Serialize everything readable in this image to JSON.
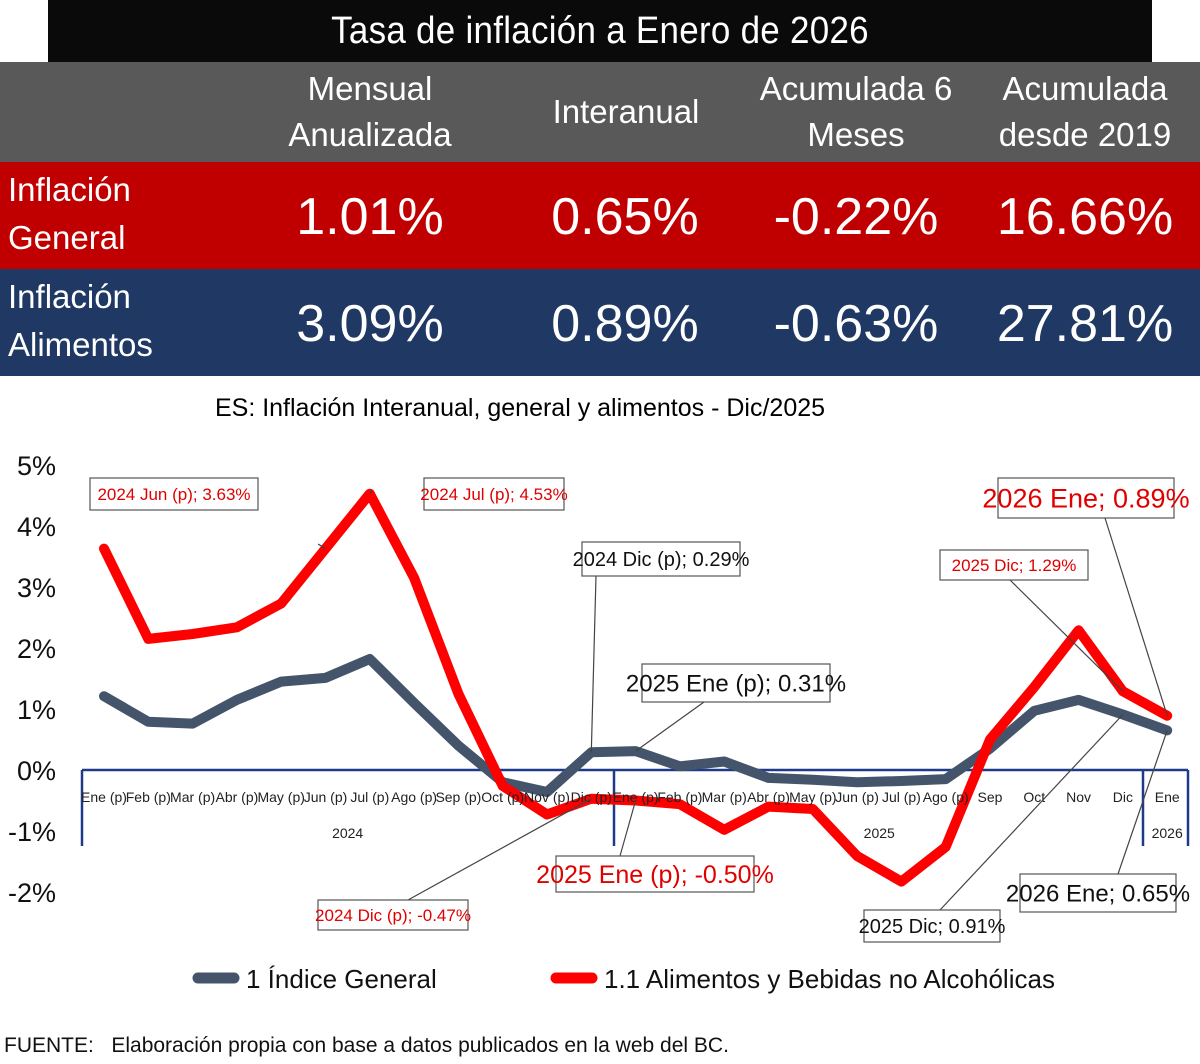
{
  "table": {
    "title": "Tasa de inflación a Enero de 2026",
    "headers": [
      "Mensual Anualizada",
      "Interanual",
      "Acumulada 6 Meses",
      "Acumulada desde 2019"
    ],
    "rows": [
      {
        "label": "Inflación General",
        "values": [
          "1.01%",
          "0.65%",
          "-0.22%",
          "16.66%"
        ]
      },
      {
        "label": "Inflación Alimentos",
        "values": [
          "3.09%",
          "0.89%",
          "-0.63%",
          "27.81%"
        ]
      }
    ]
  },
  "chart_data": {
    "type": "line",
    "title": "ES: Inflación Interanual, general y alimentos - Dic/2025",
    "ylim": [
      -2,
      5
    ],
    "yticks": [
      "-2%",
      "-1%",
      "0%",
      "1%",
      "2%",
      "3%",
      "4%",
      "5%"
    ],
    "categories": [
      "Ene (p)",
      "Feb (p)",
      "Mar (p)",
      "Abr (p)",
      "May (p)",
      "Jun (p)",
      "Jul (p)",
      "Ago (p)",
      "Sep (p)",
      "Oct (p)",
      "Nov (p)",
      "Dic (p)",
      "Ene (p)",
      "Feb (p)",
      "Mar (p)",
      "Abr (p)",
      "May (p)",
      "Jun (p)",
      "Jul (p)",
      "Ago (p)",
      "Sep",
      "Oct",
      "Nov",
      "Dic",
      "Ene"
    ],
    "groups": [
      {
        "label": "2024",
        "start": 0,
        "end": 11
      },
      {
        "label": "2025",
        "start": 12,
        "end": 23
      },
      {
        "label": "2026",
        "start": 24,
        "end": 24
      }
    ],
    "series": [
      {
        "name": "1   Índice General",
        "color": "#44546a",
        "values": [
          1.21,
          0.79,
          0.76,
          1.15,
          1.45,
          1.51,
          1.82,
          1.1,
          0.4,
          -0.2,
          -0.36,
          0.29,
          0.31,
          0.06,
          0.14,
          -0.13,
          -0.16,
          -0.2,
          -0.18,
          -0.15,
          0.35,
          0.97,
          1.15,
          0.91,
          0.65
        ]
      },
      {
        "name": "1.1   Alimentos y Bebidas no Alcohólicas",
        "color": "#ff0000",
        "values": [
          3.63,
          2.15,
          2.23,
          2.34,
          2.73,
          3.63,
          4.53,
          3.15,
          1.25,
          -0.26,
          -0.73,
          -0.47,
          -0.5,
          -0.56,
          -0.98,
          -0.6,
          -0.64,
          -1.41,
          -1.83,
          -1.26,
          0.5,
          1.36,
          2.29,
          1.29,
          0.89
        ]
      }
    ],
    "annotations": [
      {
        "text": "2024 Jun (p); 3.63%",
        "series": 1,
        "index": 5
      },
      {
        "text": "2024 Jul (p); 4.53%",
        "series": 1,
        "index": 6
      },
      {
        "text": "2024 Dic (p); 0.29%",
        "series": 0,
        "index": 11
      },
      {
        "text": "2025 Ene (p); 0.31%",
        "series": 0,
        "index": 12
      },
      {
        "text": "2024 Dic (p); -0.47%",
        "series": 1,
        "index": 11
      },
      {
        "text": "2025 Ene (p); -0.50%",
        "series": 1,
        "index": 12
      },
      {
        "text": "2025 Dic; 1.29%",
        "series": 1,
        "index": 23
      },
      {
        "text": "2026 Ene; 0.89%",
        "series": 1,
        "index": 24
      },
      {
        "text": "2025 Dic; 0.91%",
        "series": 0,
        "index": 23
      },
      {
        "text": "2026 Ene; 0.65%",
        "series": 0,
        "index": 24
      }
    ],
    "legend_position": "bottom"
  },
  "footer": {
    "source": "FUENTE:   Elaboración propia con base a datos publicados en la web del BC."
  }
}
